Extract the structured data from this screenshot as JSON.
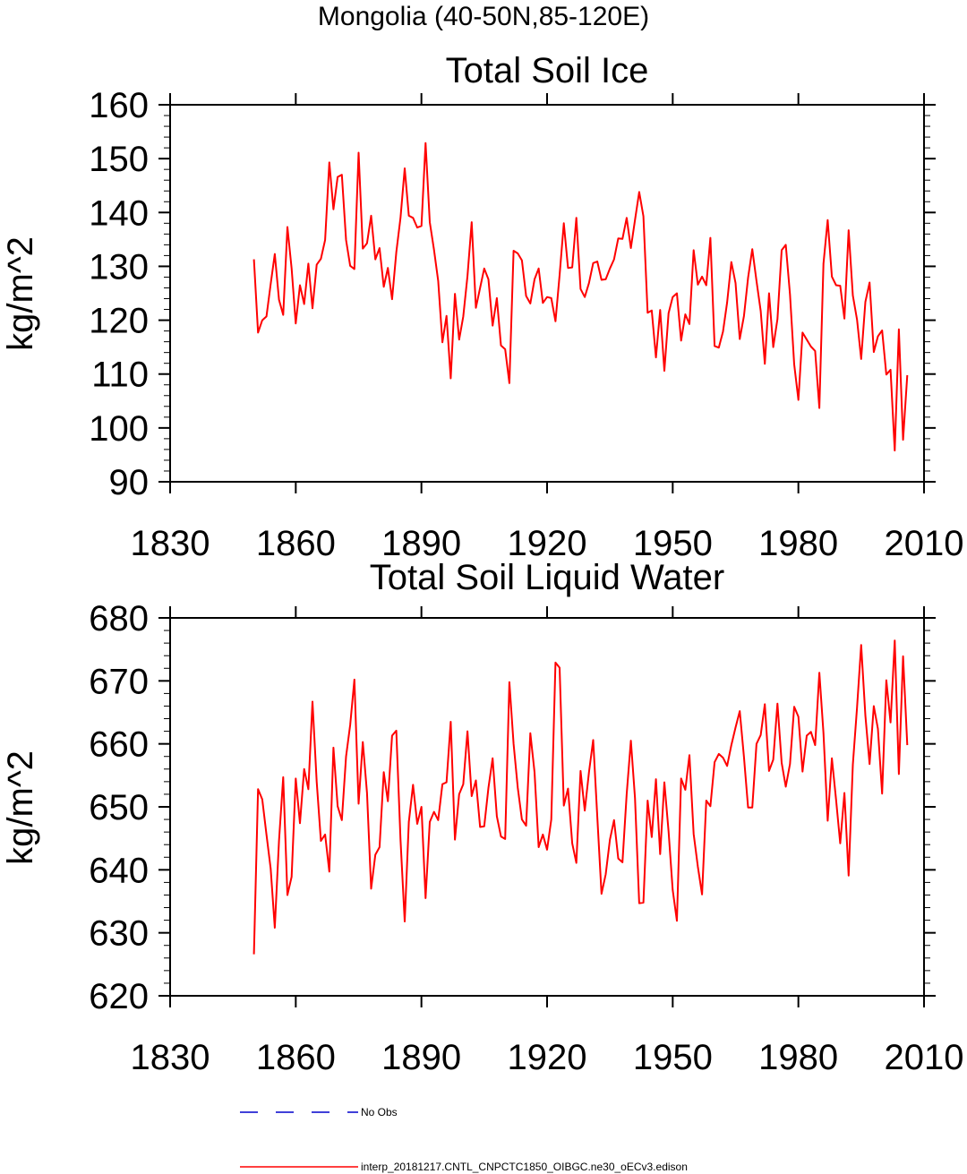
{
  "figure_title": "Mongolia (40-50N,85-120E)",
  "colors": {
    "model_line": "#ff0000",
    "obs_line": "#0000cc",
    "axis": "#000000",
    "background": "#ffffff"
  },
  "legend": [
    {
      "label": "No Obs",
      "color": "#0000cc",
      "style": "dashed"
    },
    {
      "label": "interp_20181217.CNTL_CNPCTC1850_OIBGC.ne30_oECv3.edison",
      "color": "#ff0000",
      "style": "solid"
    }
  ],
  "chart_data": [
    {
      "type": "line",
      "title": "Total Soil Ice",
      "xlabel": "",
      "ylabel": "kg/m^2",
      "xlim": [
        1830,
        2010
      ],
      "ylim": [
        90,
        160
      ],
      "xticks": [
        1830,
        1860,
        1890,
        1920,
        1950,
        1980,
        2010
      ],
      "yticks": [
        90,
        100,
        110,
        120,
        130,
        140,
        150,
        160
      ],
      "x_start": 1850,
      "x_step": 1,
      "series": [
        {
          "name": "interp_20181217.CNTL_CNPCTC1850_OIBGC.ne30_oECv3.edison",
          "values": [
            131.3,
            117.7,
            120.0,
            120.7,
            126.7,
            132.3,
            123.8,
            121.0,
            137.3,
            129.6,
            119.4,
            126.5,
            123.0,
            130.5,
            122.2,
            130.3,
            131.4,
            134.9,
            149.3,
            140.6,
            146.6,
            147.0,
            134.9,
            130.1,
            129.5,
            151.1,
            133.3,
            134.3,
            139.4,
            131.3,
            133.4,
            126.2,
            129.7,
            123.9,
            132.6,
            139.0,
            148.2,
            139.4,
            139.0,
            137.2,
            137.5,
            152.9,
            138.2,
            133.1,
            127.3,
            115.9,
            120.8,
            109.2,
            124.9,
            116.4,
            120.7,
            128.2,
            138.2,
            122.3,
            126.0,
            129.6,
            127.6,
            119.0,
            124.1,
            115.3,
            114.6,
            108.3,
            132.9,
            132.4,
            131.1,
            124.5,
            123.1,
            127.6,
            129.6,
            123.2,
            124.3,
            124.1,
            119.8,
            128.4,
            138.0,
            129.7,
            129.8,
            139.0,
            125.8,
            124.3,
            126.9,
            130.6,
            130.9,
            127.5,
            127.6,
            129.6,
            131.3,
            135.2,
            135.1,
            139.0,
            133.4,
            138.6,
            143.8,
            139.3,
            121.4,
            121.8,
            113.1,
            121.9,
            110.6,
            121.3,
            124.3,
            125.0,
            116.2,
            121.1,
            119.3,
            133.0,
            126.6,
            128.1,
            126.5,
            135.3,
            115.2,
            114.9,
            117.9,
            123.3,
            130.8,
            126.9,
            116.5,
            120.8,
            127.9,
            133.2,
            127.3,
            121.7,
            111.9,
            125.0,
            115.0,
            120.2,
            133.0,
            134.0,
            124.8,
            111.8,
            105.2,
            117.7,
            116.4,
            115.1,
            114.3,
            103.7,
            130.5,
            138.6,
            128.1,
            126.5,
            126.4,
            120.3,
            136.7,
            124.6,
            120.1,
            112.8,
            123.4,
            127.0,
            114.1,
            117.0,
            118.1,
            109.9,
            110.8,
            95.8,
            118.3,
            97.8,
            109.8
          ]
        }
      ]
    },
    {
      "type": "line",
      "title": "Total Soil Liquid Water",
      "xlabel": "",
      "ylabel": "kg/m^2",
      "xlim": [
        1830,
        2010
      ],
      "ylim": [
        620,
        680
      ],
      "xticks": [
        1830,
        1860,
        1890,
        1920,
        1950,
        1980,
        2010
      ],
      "yticks": [
        620,
        630,
        640,
        650,
        660,
        670,
        680
      ],
      "x_start": 1850,
      "x_step": 1,
      "series": [
        {
          "name": "interp_20181217.CNTL_CNPCTC1850_OIBGC.ne30_oECv3.edison",
          "values": [
            626.6,
            652.8,
            651.2,
            645.6,
            640.2,
            630.8,
            644.6,
            654.7,
            636.0,
            638.9,
            654.5,
            647.4,
            656.0,
            652.8,
            666.7,
            654.0,
            644.6,
            645.6,
            639.7,
            659.4,
            650.1,
            647.9,
            658.0,
            663.0,
            670.2,
            650.5,
            660.3,
            652.2,
            637.0,
            642.4,
            643.6,
            655.5,
            650.9,
            661.3,
            662.1,
            644.8,
            631.8,
            647.6,
            653.5,
            647.3,
            650.0,
            635.5,
            647.6,
            649.2,
            647.9,
            653.6,
            653.9,
            663.5,
            644.8,
            652.0,
            653.6,
            662.0,
            651.7,
            654.2,
            646.8,
            646.9,
            653.0,
            657.7,
            648.5,
            645.3,
            644.9,
            669.8,
            660.0,
            653.0,
            648.0,
            647.0,
            661.7,
            655.5,
            643.6,
            645.6,
            643.2,
            648.0,
            672.9,
            672.1,
            650.2,
            652.9,
            644.2,
            641.1,
            655.7,
            649.4,
            655.5,
            660.6,
            648.4,
            636.2,
            639.3,
            644.8,
            647.9,
            641.8,
            641.2,
            652.0,
            660.5,
            651.4,
            634.7,
            634.8,
            651.0,
            645.2,
            654.4,
            642.5,
            653.9,
            646.1,
            636.8,
            631.9,
            654.5,
            652.7,
            658.2,
            645.7,
            640.5,
            636.1,
            651.0,
            650.1,
            657.1,
            658.4,
            657.8,
            656.5,
            659.8,
            662.6,
            665.2,
            657.9,
            649.9,
            649.9,
            660.0,
            661.4,
            666.3,
            655.7,
            657.5,
            666.4,
            657.0,
            653.2,
            656.8,
            665.9,
            664.3,
            655.6,
            661.3,
            661.9,
            659.8,
            671.3,
            661.7,
            647.8,
            657.7,
            651.1,
            644.2,
            652.2,
            639.1,
            656.7,
            665.8,
            675.7,
            664.5,
            656.8,
            666.0,
            662.4,
            652.1,
            670.1,
            663.4,
            676.4,
            655.2,
            673.9,
            659.8
          ]
        }
      ]
    }
  ]
}
